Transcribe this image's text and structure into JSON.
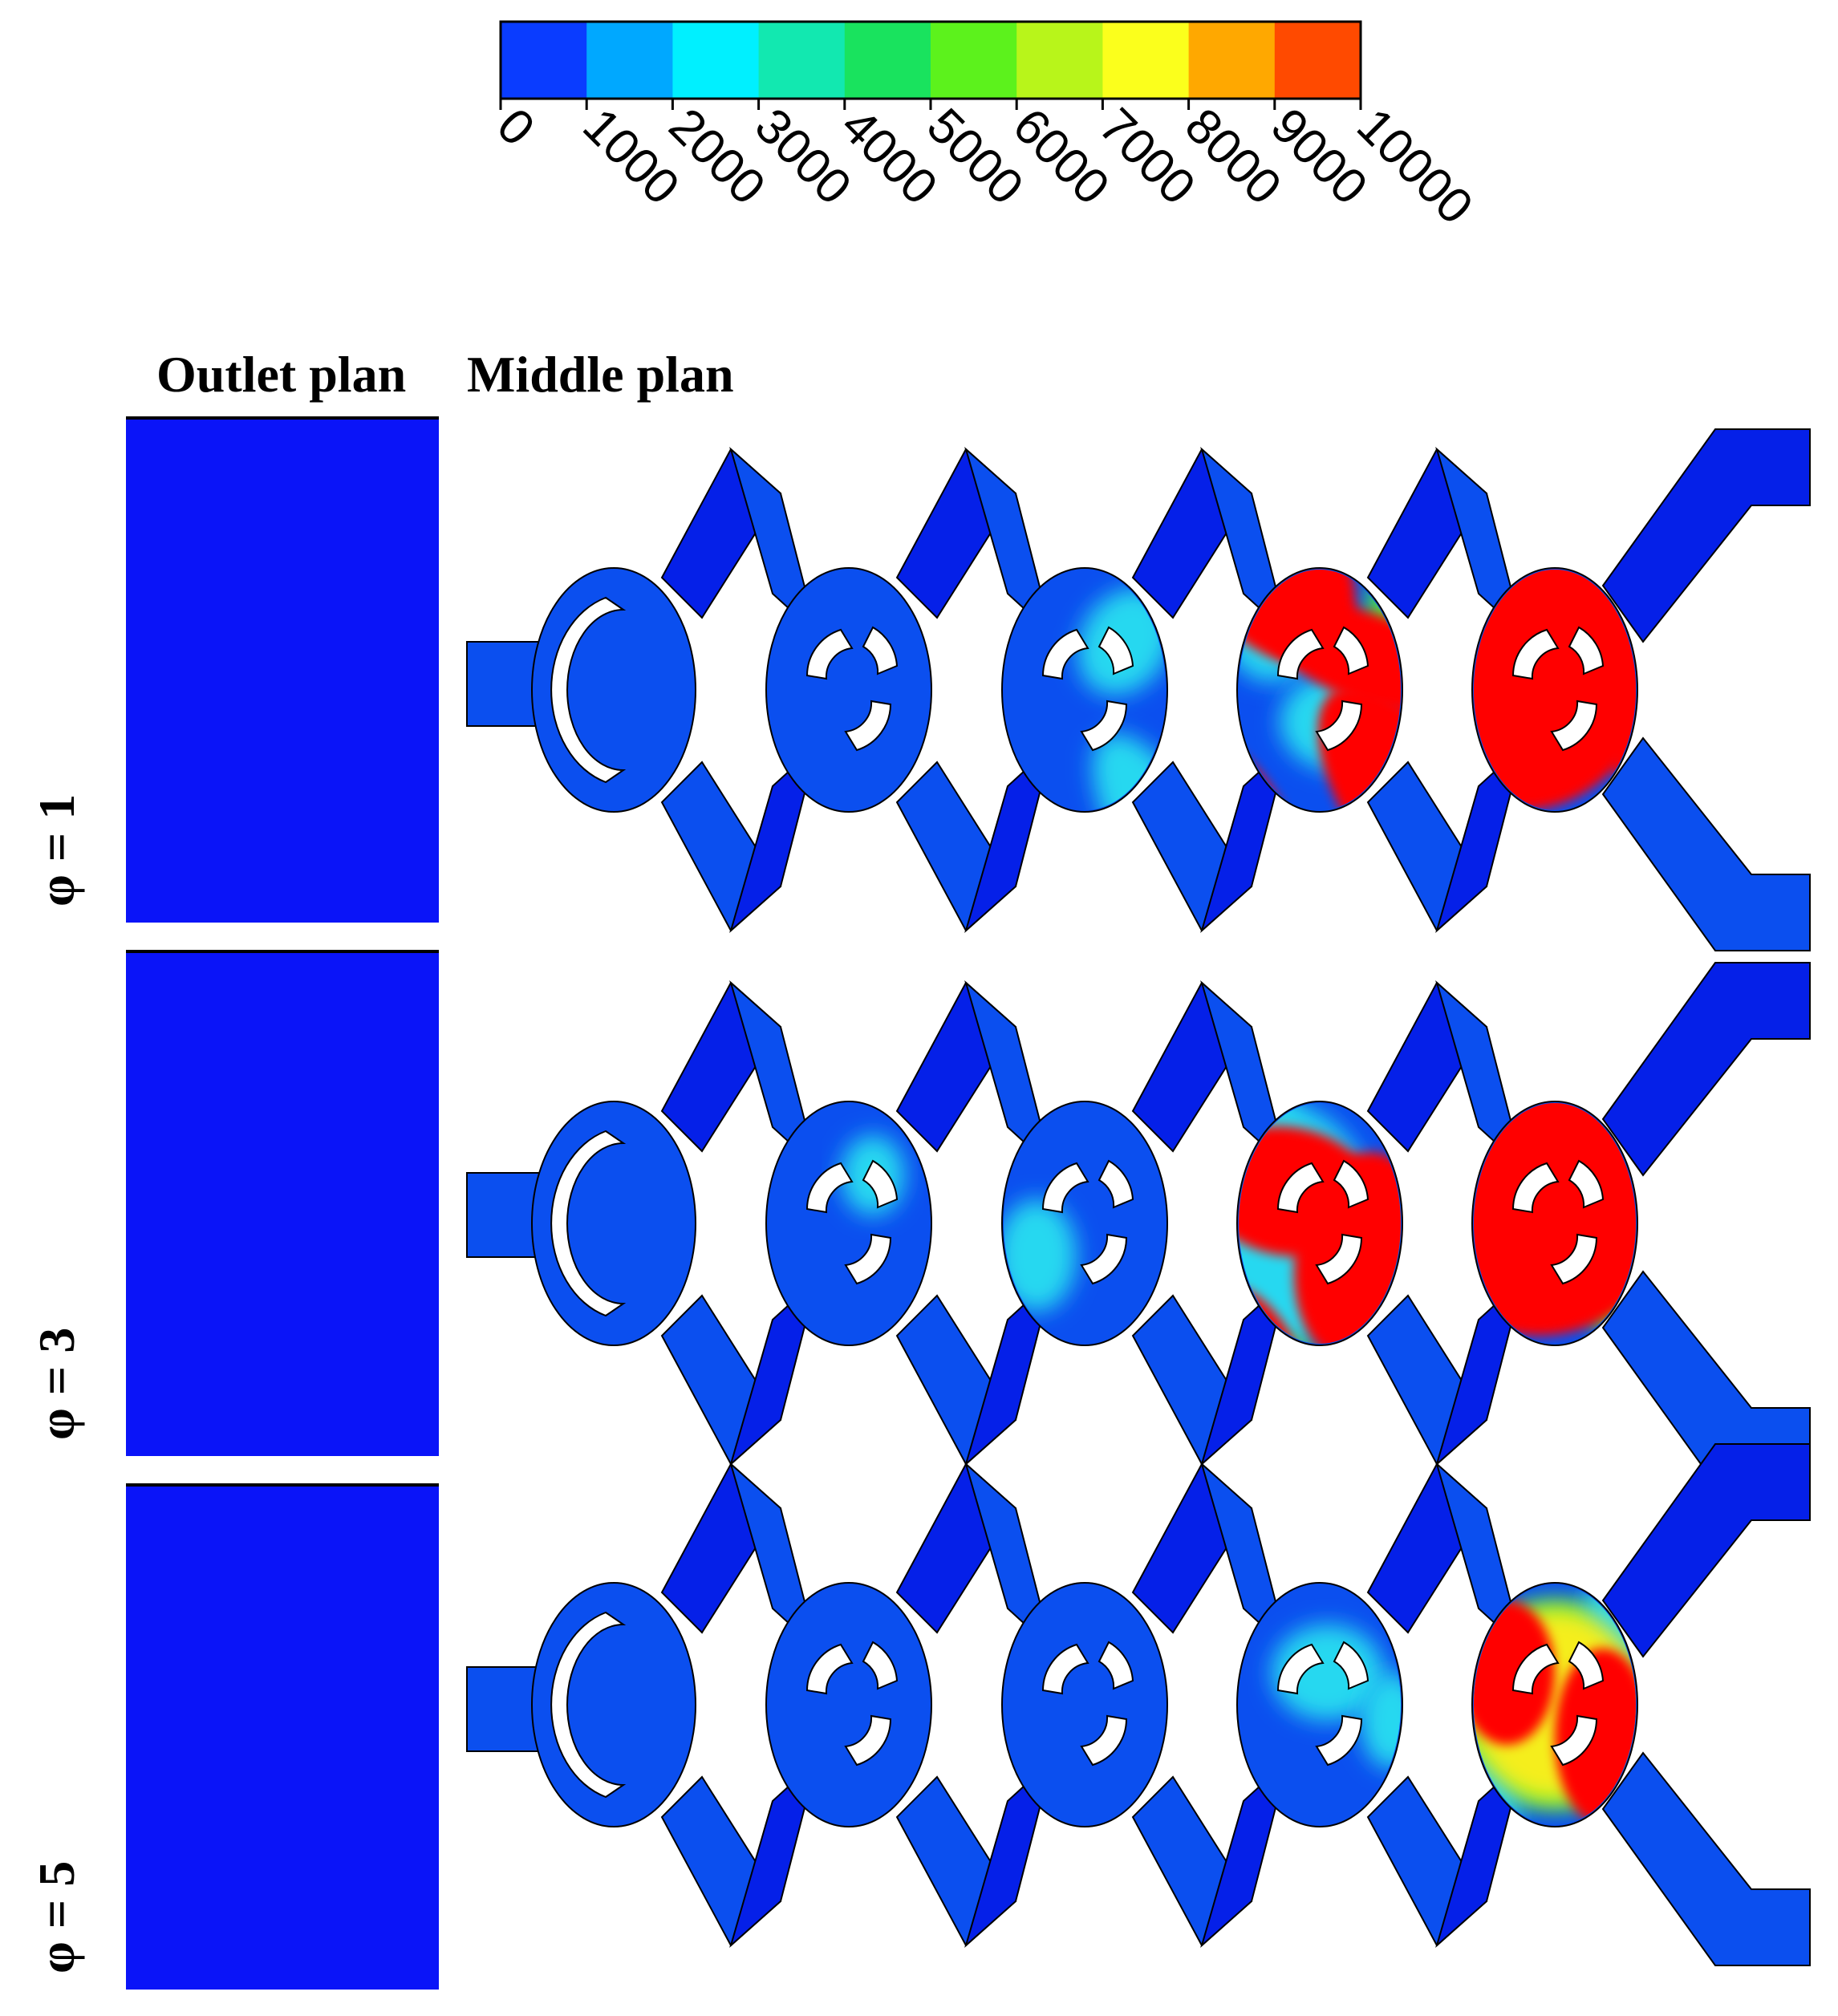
{
  "colorbar": {
    "ticks": [
      "0",
      "1000",
      "2000",
      "3000",
      "4000",
      "5000",
      "6000",
      "7000",
      "8000",
      "9000",
      "10000"
    ],
    "colors": [
      "#0a3cff",
      "#00a8ff",
      "#00f0ff",
      "#12e8b0",
      "#19e35e",
      "#5cf21c",
      "#b8f51a",
      "#fbff1c",
      "#ffa800",
      "#ff4a00"
    ]
  },
  "headings": {
    "outlet": "Outlet plan",
    "middle": "Middle plan"
  },
  "rows": [
    {
      "label": "φ = 1",
      "outlet_color": "#0a14f8"
    },
    {
      "label": "φ = 3",
      "outlet_color": "#0a14f8"
    },
    {
      "label": "φ = 5",
      "outlet_color": "#0a14f8"
    }
  ],
  "field_colors": {
    "base": "#0b4fef",
    "dark": "#0520e8",
    "cyan": "#28d8f0",
    "green": "#4cef3a",
    "yellow": "#f5ee1a",
    "red": "#ff0000"
  }
}
